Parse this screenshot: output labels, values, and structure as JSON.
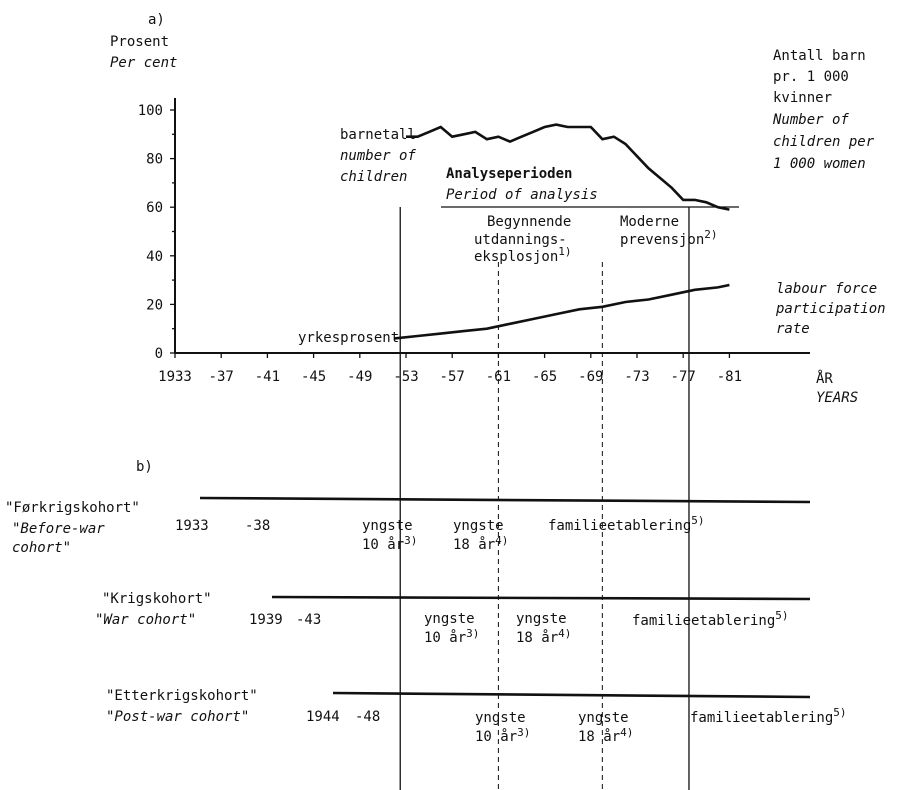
{
  "panel_a": {
    "label": "a)",
    "y_title_no": "Prosent",
    "y_title_en": "Per cent",
    "right_title_no": [
      "Antall barn",
      "pr. 1 000",
      "kvinner"
    ],
    "right_title_en": [
      "Number of",
      "children per",
      "1 000 women"
    ],
    "x_unit_no": "ÅR",
    "x_unit_en": "YEARS",
    "children_label_no": "barnetall",
    "children_label_en": [
      "number of",
      "children"
    ],
    "lfp_label_no": "yrkesprosent",
    "lfp_label_en": [
      "labour force",
      "participation",
      "rate"
    ],
    "period_title_no": "Analyseperioden",
    "period_title_en": "Period of analysis",
    "education_label": [
      "Begynnende",
      "utdannings-",
      "eksplosjon"
    ],
    "education_note": "1)",
    "contraception_label": [
      "Moderne",
      "prevensjon"
    ],
    "contraception_note": "2)"
  },
  "chart_data": {
    "type": "line",
    "xlim": [
      1933,
      1982
    ],
    "ylim": [
      0,
      100
    ],
    "x_tick_labels": [
      {
        "x": 1933,
        "label": "1933"
      },
      {
        "x": 1937,
        "label": "-37"
      },
      {
        "x": 1941,
        "label": "-41"
      },
      {
        "x": 1945,
        "label": "-45"
      },
      {
        "x": 1949,
        "label": "-49"
      },
      {
        "x": 1953,
        "label": "-53"
      },
      {
        "x": 1957,
        "label": "-57"
      },
      {
        "x": 1961,
        "label": "-61"
      },
      {
        "x": 1965,
        "label": "-65"
      },
      {
        "x": 1969,
        "label": "-69"
      },
      {
        "x": 1973,
        "label": "-73"
      },
      {
        "x": 1977,
        "label": "-77"
      },
      {
        "x": 1981,
        "label": "-81"
      }
    ],
    "y_tick_labels": [
      {
        "y": 0,
        "label": "0"
      },
      {
        "y": 20,
        "label": "20"
      },
      {
        "y": 40,
        "label": "40"
      },
      {
        "y": 60,
        "label": "60"
      },
      {
        "y": 80,
        "label": "80"
      },
      {
        "y": 100,
        "label": "100"
      }
    ],
    "series": [
      {
        "name": "barnetall",
        "x": [
          1953,
          1954,
          1955,
          1956,
          1957,
          1958,
          1959,
          1960,
          1961,
          1962,
          1963,
          1964,
          1965,
          1966,
          1967,
          1968,
          1969,
          1970,
          1971,
          1972,
          1973,
          1974,
          1975,
          1976,
          1977,
          1978,
          1979,
          1980,
          1981
        ],
        "y": [
          89,
          89,
          91,
          93,
          89,
          90,
          91,
          88,
          89,
          87,
          89,
          91,
          93,
          94,
          93,
          93,
          93,
          88,
          89,
          86,
          81,
          76,
          72,
          68,
          63,
          63,
          62,
          60,
          59
        ]
      },
      {
        "name": "yrkesprosent",
        "x": [
          1952,
          1954,
          1956,
          1958,
          1960,
          1962,
          1964,
          1966,
          1968,
          1970,
          1972,
          1974,
          1976,
          1978,
          1980,
          1981
        ],
        "y": [
          6,
          7,
          8,
          9,
          10,
          12,
          14,
          16,
          18,
          19,
          21,
          22,
          24,
          26,
          27,
          28
        ]
      }
    ],
    "markers": [
      {
        "x": 1952.5,
        "style": "solid"
      },
      {
        "x": 1961,
        "style": "dashed"
      },
      {
        "x": 1970,
        "style": "dashed"
      },
      {
        "x": 1977.5,
        "style": "solid"
      }
    ]
  },
  "panel_b": {
    "label": "b)",
    "cohorts": [
      {
        "name_no": "\"Førkrigskohort\"",
        "name_en": [
          "\"Before-war",
          " cohort\""
        ],
        "start_year": "1933",
        "end_year": "-38",
        "stage1": [
          "yngste",
          "10 år"
        ],
        "stage1_note": "3)",
        "stage2": [
          "yngste",
          "18 år"
        ],
        "stage2_note": "4)",
        "stage3": "familieetablering",
        "stage3_note": "5)"
      },
      {
        "name_no": "\"Krigskohort\"",
        "name_en": [
          "\"War cohort\""
        ],
        "start_year": "1939",
        "end_year": "-43",
        "stage1": [
          "yngste",
          "10 år"
        ],
        "stage1_note": "3)",
        "stage2": [
          "yngste",
          "18 år"
        ],
        "stage2_note": "4)",
        "stage3": "familieetablering",
        "stage3_note": "5)"
      },
      {
        "name_no": "\"Etterkrigskohort\"",
        "name_en": [
          "\"Post-war cohort\""
        ],
        "start_year": "1944",
        "end_year": "-48",
        "stage1": [
          "yngste",
          "10 år"
        ],
        "stage1_note": "3)",
        "stage2": [
          "yngste",
          "18 år"
        ],
        "stage2_note": "4)",
        "stage3": "familieetablering",
        "stage3_note": "5)"
      }
    ]
  }
}
